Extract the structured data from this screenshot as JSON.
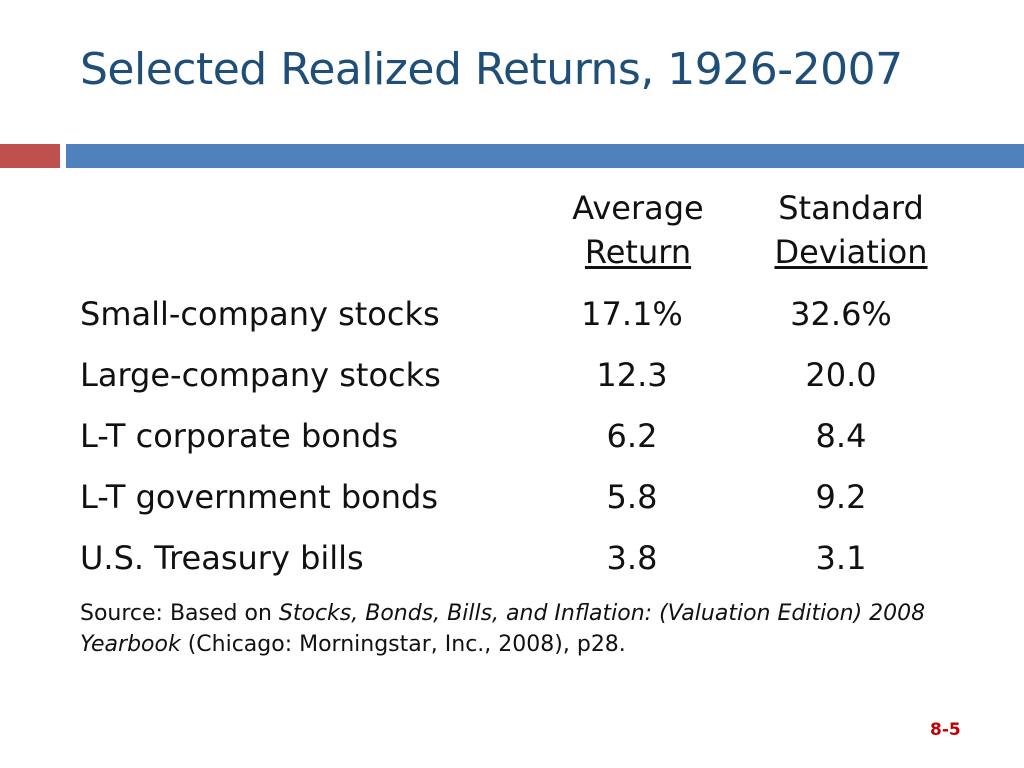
{
  "title": "Selected Realized Returns, 1926-2007",
  "colors": {
    "title": "#1f4e79",
    "band_left": "#c0504d",
    "band_right": "#4f81bd",
    "page_number": "#c00000"
  },
  "columns": {
    "average": {
      "line1": "Average",
      "line2": "Return"
    },
    "stdev": {
      "line1": "Standard",
      "line2": "Deviation"
    }
  },
  "rows": [
    {
      "label": "Small-company stocks",
      "avg": "17.1%",
      "sd": "32.6%"
    },
    {
      "label": "Large-company stocks",
      "avg": "12.3",
      "sd": "20.0"
    },
    {
      "label": "L-T corporate bonds",
      "avg": "6.2",
      "sd": "8.4"
    },
    {
      "label": "L-T government bonds",
      "avg": "5.8",
      "sd": "9.2"
    },
    {
      "label": "U.S. Treasury bills",
      "avg": "3.8",
      "sd": "3.1"
    }
  ],
  "source": {
    "prefix": "Source:  Based on ",
    "title_italic": "Stocks, Bonds, Bills, and Inflation:  (Valuation Edition) 2008 Yearbook",
    "suffix": " (Chicago:  Morningstar, Inc., 2008), p28."
  },
  "page_number": "8-5"
}
